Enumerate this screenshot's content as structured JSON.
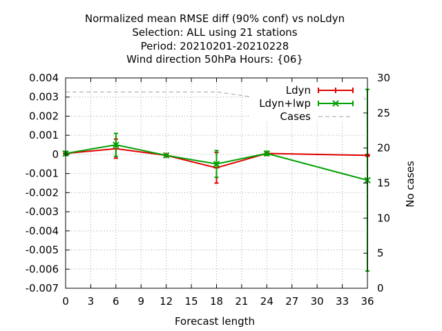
{
  "chart_data": {
    "type": "line",
    "title_lines": [
      "Normalized mean RMSE diff (90% conf) vs noLdyn",
      "Selection: ALL using    21 stations",
      "Period: 20210201-20210228",
      "Wind direction 50hPa   Hours: {06}"
    ],
    "xlabel": "Forecast length",
    "ylabel": "",
    "y2label": "No cases",
    "xlim": [
      0,
      36
    ],
    "ylim": [
      -0.007,
      0.004
    ],
    "y2lim": [
      0,
      30
    ],
    "xticks": [
      0,
      3,
      6,
      9,
      12,
      15,
      18,
      21,
      24,
      27,
      30,
      33,
      36
    ],
    "yticks": [
      0.004,
      0.003,
      0.002,
      0.001,
      0,
      -0.001,
      -0.002,
      -0.003,
      -0.004,
      -0.005,
      -0.006,
      -0.007
    ],
    "ytick_labels": [
      "0.004",
      "0.003",
      "0.002",
      "0.001",
      "0",
      "-0.001",
      "-0.002",
      "-0.003",
      "-0.004",
      "-0.005",
      "-0.006",
      "-0.007"
    ],
    "y2ticks": [
      30,
      25,
      20,
      15,
      10,
      5,
      0
    ],
    "grid": true,
    "legend_position": "top-right",
    "series": [
      {
        "name": "Ldyn",
        "color": "#e00000",
        "marker": "plus",
        "x": [
          0,
          6,
          12,
          18,
          24,
          36
        ],
        "y": [
          5e-05,
          0.0003,
          -5e-05,
          -0.0007,
          5e-05,
          -5e-05
        ],
        "err_low": [
          -5e-05,
          -0.0002,
          -0.0001,
          -0.0015,
          -5e-05,
          -0.0001
        ],
        "err_high": [
          0.00015,
          0.0008,
          0.0,
          0.0001,
          0.00015,
          0.0
        ]
      },
      {
        "name": "Ldyn+lwp",
        "color": "#00a000",
        "marker": "cross",
        "x": [
          0,
          6,
          12,
          18,
          24,
          36
        ],
        "y": [
          5e-05,
          0.0005,
          -5e-05,
          -0.0005,
          5e-05,
          -0.00135
        ],
        "err_low": [
          -5e-05,
          -0.0001,
          -0.0001,
          -0.0012,
          -5e-05,
          -0.0061
        ],
        "err_high": [
          0.00015,
          0.0011,
          0.0,
          0.0002,
          0.00015,
          0.0034
        ]
      },
      {
        "name": "Cases",
        "color": "#a0a0a0",
        "style": "dashed",
        "axis": "y2",
        "x": [
          0,
          6,
          12,
          18,
          24,
          36
        ],
        "y": [
          28,
          28,
          28,
          28,
          27,
          27
        ]
      }
    ]
  }
}
